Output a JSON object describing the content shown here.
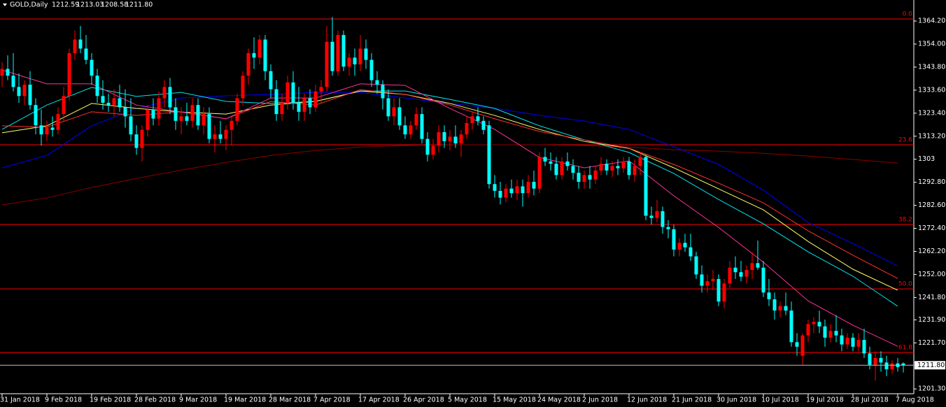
{
  "chart_data": {
    "type": "candlestick",
    "symbol": "GOLD,Daily",
    "header_values": [
      "1212.59",
      "1213.03",
      "1208.58",
      "1211.80"
    ],
    "current_price_label": "1211.80",
    "up_color": "#ff0000",
    "down_color": "#00ffff",
    "ylim": [
      1199.5,
      1373.5
    ],
    "yticks": [
      {
        "value": 1364.2,
        "label": "1364.20"
      },
      {
        "value": 1354,
        "label": "1354.00"
      },
      {
        "value": 1343.8,
        "label": "1343.80"
      },
      {
        "value": 1333.6,
        "label": "1333.60"
      },
      {
        "value": 1323.4,
        "label": "1323.40"
      },
      {
        "value": 1313.2,
        "label": "1313.20"
      },
      1303,
      {
        "value": 1292.8,
        "label": "1292.80"
      },
      {
        "value": 1282.6,
        "label": "1282.60"
      },
      {
        "value": 1272.4,
        "label": "1272.40"
      },
      {
        "value": 1262.2,
        "label": "1262.20"
      },
      {
        "value": 1252,
        "label": "1252.00"
      },
      {
        "value": 1241.8,
        "label": "1241.80"
      },
      {
        "value": 1231.9,
        "label": "1231.90"
      },
      {
        "value": 1221.7,
        "label": "1221.70"
      },
      {
        "value": 1201.3,
        "label": "1201.30"
      }
    ],
    "fib_levels": [
      {
        "label": "0.0",
        "price": 1365.1
      },
      {
        "label": "23.6",
        "price": 1309.4
      },
      {
        "label": "38.2",
        "price": 1274.1
      },
      {
        "label": "50.0",
        "price": 1245.6
      },
      {
        "label": "61.8",
        "price": 1217.4
      }
    ],
    "fib_color": "#ff0000",
    "categories": [
      "31 Jan 2018",
      null,
      null,
      null,
      null,
      null,
      null,
      null,
      "9 Feb 2018",
      null,
      null,
      null,
      null,
      null,
      null,
      null,
      "19 Feb 2018",
      null,
      null,
      null,
      null,
      null,
      null,
      null,
      "28 Feb 2018",
      null,
      null,
      null,
      null,
      null,
      null,
      null,
      "9 Mar 2018",
      null,
      null,
      null,
      null,
      null,
      null,
      null,
      "19 Mar 2018",
      null,
      null,
      null,
      null,
      null,
      null,
      null,
      "28 Mar 2018",
      null,
      null,
      null,
      null,
      null,
      null,
      null,
      "7 Apr 2018",
      null,
      null,
      null,
      null,
      null,
      null,
      null,
      "17 Apr 2018",
      null,
      null,
      null,
      null,
      null,
      null,
      null,
      "26 Apr 2018",
      null,
      null,
      null,
      null,
      null,
      null,
      null,
      "5 May 2018",
      null,
      null,
      null,
      null,
      null,
      null,
      null,
      "15 May 2018",
      null,
      null,
      null,
      null,
      null,
      null,
      null,
      "24 May 2018",
      null,
      null,
      null,
      null,
      null,
      null,
      null,
      "2 Jun 2018",
      null,
      null,
      null,
      null,
      null,
      null,
      null,
      "12 Jun 2018",
      null,
      null,
      null,
      null,
      null,
      null,
      null,
      "21 Jun 2018",
      null,
      null,
      null,
      null,
      null,
      null,
      null,
      "30 Jun 2018",
      null,
      null,
      null,
      null,
      null,
      null,
      null,
      "10 Jul 2018",
      null,
      null,
      null,
      null,
      null,
      null,
      null,
      "19 Jul 2018",
      null,
      null,
      null,
      null,
      null,
      null,
      null,
      "28 Jul 2018",
      null,
      null,
      null,
      null,
      null,
      null,
      null,
      "7 Aug 2018",
      null
    ],
    "ohlc": [
      [
        1340,
        1346,
        1335,
        1343
      ],
      [
        1343,
        1349,
        1338,
        1340
      ],
      [
        1340,
        1350,
        1333,
        1335
      ],
      [
        1335,
        1341,
        1328,
        1331
      ],
      [
        1331,
        1338,
        1327,
        1336
      ],
      [
        1336,
        1342,
        1325,
        1327
      ],
      [
        1327,
        1330,
        1314,
        1318
      ],
      [
        1318,
        1325,
        1309,
        1314
      ],
      [
        1314,
        1320,
        1311,
        1317
      ],
      [
        1317,
        1322,
        1313,
        1316
      ],
      [
        1316,
        1326,
        1314,
        1323
      ],
      [
        1323,
        1335,
        1320,
        1331
      ],
      [
        1331,
        1352,
        1329,
        1350
      ],
      [
        1350,
        1360,
        1347,
        1356
      ],
      [
        1356,
        1362,
        1350,
        1352
      ],
      [
        1352,
        1358,
        1345,
        1347
      ],
      [
        1347,
        1350,
        1336,
        1340
      ],
      [
        1340,
        1343,
        1328,
        1331
      ],
      [
        1331,
        1338,
        1325,
        1328
      ],
      [
        1328,
        1332,
        1324,
        1327
      ],
      [
        1327,
        1334,
        1322,
        1330
      ],
      [
        1330,
        1336,
        1324,
        1326
      ],
      [
        1326,
        1334,
        1317,
        1322
      ],
      [
        1322,
        1330,
        1311,
        1314
      ],
      [
        1314,
        1318,
        1305,
        1308
      ],
      [
        1308,
        1318,
        1302,
        1316
      ],
      [
        1316,
        1327,
        1313,
        1325
      ],
      [
        1325,
        1330,
        1318,
        1321
      ],
      [
        1321,
        1333,
        1318,
        1330
      ],
      [
        1330,
        1338,
        1326,
        1335
      ],
      [
        1335,
        1339,
        1323,
        1326
      ],
      [
        1326,
        1330,
        1316,
        1320
      ],
      [
        1320,
        1326,
        1314,
        1322
      ],
      [
        1322,
        1328,
        1318,
        1320
      ],
      [
        1320,
        1330,
        1317,
        1327
      ],
      [
        1327,
        1330,
        1316,
        1318
      ],
      [
        1318,
        1326,
        1314,
        1323
      ],
      [
        1323,
        1326,
        1310,
        1312
      ],
      [
        1312,
        1318,
        1306,
        1314
      ],
      [
        1314,
        1320,
        1310,
        1312
      ],
      [
        1312,
        1318,
        1307,
        1316
      ],
      [
        1316,
        1322,
        1309,
        1320
      ],
      [
        1320,
        1332,
        1318,
        1330
      ],
      [
        1330,
        1342,
        1327,
        1340
      ],
      [
        1340,
        1352,
        1336,
        1350
      ],
      [
        1350,
        1357,
        1343,
        1348
      ],
      [
        1348,
        1358,
        1345,
        1356
      ],
      [
        1356,
        1358,
        1338,
        1342
      ],
      [
        1342,
        1345,
        1330,
        1334
      ],
      [
        1334,
        1338,
        1320,
        1323
      ],
      [
        1323,
        1332,
        1320,
        1328
      ],
      [
        1328,
        1340,
        1325,
        1337
      ],
      [
        1337,
        1342,
        1325,
        1328
      ],
      [
        1328,
        1335,
        1320,
        1324
      ],
      [
        1324,
        1332,
        1320,
        1330
      ],
      [
        1330,
        1334,
        1323,
        1326
      ],
      [
        1326,
        1336,
        1324,
        1333
      ],
      [
        1333,
        1338,
        1328,
        1335
      ],
      [
        1335,
        1362,
        1333,
        1355
      ],
      [
        1355,
        1366,
        1340,
        1342
      ],
      [
        1342,
        1360,
        1340,
        1358
      ],
      [
        1358,
        1360,
        1342,
        1344
      ],
      [
        1344,
        1350,
        1340,
        1348
      ],
      [
        1348,
        1352,
        1340,
        1345
      ],
      [
        1345,
        1358,
        1342,
        1352
      ],
      [
        1352,
        1356,
        1343,
        1347
      ],
      [
        1347,
        1350,
        1335,
        1338
      ],
      [
        1338,
        1342,
        1332,
        1336
      ],
      [
        1336,
        1338,
        1325,
        1330
      ],
      [
        1330,
        1334,
        1320,
        1322
      ],
      [
        1322,
        1330,
        1318,
        1326
      ],
      [
        1326,
        1330,
        1316,
        1318
      ],
      [
        1318,
        1322,
        1312,
        1314
      ],
      [
        1314,
        1320,
        1312,
        1318
      ],
      [
        1318,
        1326,
        1316,
        1323
      ],
      [
        1323,
        1326,
        1310,
        1312
      ],
      [
        1312,
        1315,
        1302,
        1305
      ],
      [
        1305,
        1312,
        1303,
        1309
      ],
      [
        1309,
        1318,
        1306,
        1315
      ],
      [
        1315,
        1318,
        1308,
        1311
      ],
      [
        1311,
        1316,
        1307,
        1313
      ],
      [
        1313,
        1318,
        1308,
        1310
      ],
      [
        1310,
        1316,
        1304,
        1314
      ],
      [
        1314,
        1322,
        1312,
        1319
      ],
      [
        1319,
        1324,
        1316,
        1322
      ],
      [
        1322,
        1326,
        1318,
        1320
      ],
      [
        1320,
        1322,
        1314,
        1316
      ],
      [
        1318,
        1320,
        1290,
        1292
      ],
      [
        1292,
        1296,
        1286,
        1289
      ],
      [
        1289,
        1293,
        1283,
        1286
      ],
      [
        1286,
        1292,
        1284,
        1290
      ],
      [
        1290,
        1294,
        1286,
        1288
      ],
      [
        1288,
        1294,
        1285,
        1291
      ],
      [
        1291,
        1294,
        1282,
        1288
      ],
      [
        1288,
        1296,
        1286,
        1293
      ],
      [
        1293,
        1298,
        1287,
        1290
      ],
      [
        1290,
        1306,
        1288,
        1304
      ],
      [
        1304,
        1308,
        1300,
        1302
      ],
      [
        1302,
        1306,
        1298,
        1301
      ],
      [
        1301,
        1304,
        1294,
        1296
      ],
      [
        1296,
        1304,
        1294,
        1302
      ],
      [
        1302,
        1306,
        1298,
        1300
      ],
      [
        1300,
        1303,
        1294,
        1297
      ],
      [
        1297,
        1300,
        1290,
        1293
      ],
      [
        1293,
        1298,
        1290,
        1296
      ],
      [
        1296,
        1300,
        1290,
        1294
      ],
      [
        1294,
        1300,
        1292,
        1298
      ],
      [
        1298,
        1304,
        1296,
        1301
      ],
      [
        1301,
        1303,
        1296,
        1298
      ],
      [
        1298,
        1302,
        1295,
        1300
      ],
      [
        1300,
        1303,
        1296,
        1299
      ],
      [
        1299,
        1304,
        1297,
        1302
      ],
      [
        1302,
        1304,
        1294,
        1296
      ],
      [
        1296,
        1303,
        1293,
        1300
      ],
      [
        1300,
        1306,
        1296,
        1304
      ],
      [
        1304,
        1305,
        1276,
        1278
      ],
      [
        1278,
        1282,
        1274,
        1277
      ],
      [
        1277,
        1285,
        1275,
        1280
      ],
      [
        1280,
        1282,
        1270,
        1273
      ],
      [
        1273,
        1276,
        1268,
        1272
      ],
      [
        1272,
        1274,
        1260,
        1263
      ],
      [
        1263,
        1268,
        1260,
        1266
      ],
      [
        1266,
        1270,
        1262,
        1264
      ],
      [
        1264,
        1270,
        1258,
        1260
      ],
      [
        1260,
        1262,
        1250,
        1252
      ],
      [
        1252,
        1256,
        1244,
        1247
      ],
      [
        1247,
        1252,
        1244,
        1249
      ],
      [
        1249,
        1254,
        1245,
        1250
      ],
      [
        1250,
        1252,
        1238,
        1240
      ],
      [
        1240,
        1250,
        1237,
        1248
      ],
      [
        1248,
        1258,
        1246,
        1255
      ],
      [
        1255,
        1260,
        1250,
        1253
      ],
      [
        1253,
        1258,
        1249,
        1251
      ],
      [
        1251,
        1256,
        1248,
        1254
      ],
      [
        1254,
        1262,
        1250,
        1257
      ],
      [
        1257,
        1267,
        1254,
        1255
      ],
      [
        1255,
        1258,
        1242,
        1244
      ],
      [
        1244,
        1250,
        1238,
        1241
      ],
      [
        1241,
        1244,
        1232,
        1236
      ],
      [
        1236,
        1240,
        1233,
        1238
      ],
      [
        1238,
        1244,
        1234,
        1236
      ],
      [
        1236,
        1240,
        1220,
        1222
      ],
      [
        1222,
        1226,
        1216,
        1220
      ],
      [
        1216,
        1226,
        1212,
        1225
      ],
      [
        1225,
        1232,
        1222,
        1230
      ],
      [
        1230,
        1233,
        1226,
        1231
      ],
      [
        1231,
        1236,
        1226,
        1229
      ],
      [
        1229,
        1232,
        1220,
        1224
      ],
      [
        1224,
        1230,
        1222,
        1227
      ],
      [
        1227,
        1234,
        1222,
        1225
      ],
      [
        1225,
        1228,
        1218,
        1221
      ],
      [
        1221,
        1226,
        1219,
        1224
      ],
      [
        1224,
        1226,
        1218,
        1220
      ],
      [
        1220,
        1226,
        1218,
        1223
      ],
      [
        1223,
        1228,
        1215,
        1217
      ],
      [
        1217,
        1220,
        1210,
        1212
      ],
      [
        1212,
        1218,
        1205,
        1215
      ],
      [
        1215,
        1218,
        1209,
        1213
      ],
      [
        1213,
        1216,
        1207,
        1210
      ],
      [
        1210,
        1214,
        1208,
        1212.6
      ],
      [
        1212.6,
        1215,
        1209,
        1211
      ],
      [
        1212.59,
        1213.03,
        1208.58,
        1211.8
      ]
    ],
    "moving_averages": [
      {
        "color": "#8b0000",
        "values": [
          1282.8,
          1285.9,
          1290.5,
          1294.5,
          1298.2,
          1301.6,
          1304.7,
          1306.9,
          1308.4,
          1309.1,
          1309.4,
          1309.4,
          1309.4,
          1309.1,
          1308.4,
          1307.2,
          1306.6,
          1305.6,
          1304.4,
          1302.9,
          1301.3
        ]
      },
      {
        "color": "#0000ff",
        "values": [
          1299.2,
          1304.7,
          1317.8,
          1325.5,
          1330.1,
          1331.1,
          1331.7,
          1332.6,
          1332.6,
          1330.1,
          1327.7,
          1325.5,
          1322.4,
          1319.9,
          1316.2,
          1308.5,
          1300.7,
          1289.3,
          1275.0,
          1265.7,
          1255.8
        ]
      },
      {
        "color": "#00e5ee",
        "values": [
          1316.2,
          1327.0,
          1334.8,
          1330.8,
          1332.6,
          1328.6,
          1327.7,
          1328.6,
          1333.2,
          1333.2,
          1329.5,
          1325.5,
          1317.8,
          1311.6,
          1306.0,
          1296.7,
          1285.2,
          1274.4,
          1262.0,
          1251.2,
          1237.9
        ]
      },
      {
        "color": "#ffff66",
        "values": [
          1314.7,
          1317.8,
          1327.7,
          1325.5,
          1323.9,
          1323.0,
          1327.0,
          1328.6,
          1333.2,
          1331.7,
          1327.7,
          1322.4,
          1316.2,
          1310.9,
          1307.8,
          1299.2,
          1289.9,
          1280.6,
          1266.6,
          1254.3,
          1245.0
        ]
      },
      {
        "color": "#ff3030",
        "values": [
          1317.8,
          1317.2,
          1324.0,
          1322.4,
          1324.0,
          1320.9,
          1328.6,
          1327.0,
          1333.8,
          1331.7,
          1327.0,
          1320.9,
          1315.3,
          1311.6,
          1307.9,
          1300.7,
          1292.4,
          1283.7,
          1271.3,
          1260.5,
          1250.2
        ]
      },
      {
        "color": "#ff3399",
        "values": [
          1342.5,
          1336.4,
          1336.4,
          1327.0,
          1323.9,
          1320.9,
          1330.1,
          1330.1,
          1336.4,
          1335.7,
          1325.5,
          1316.2,
          1303.8,
          1299.2,
          1302.3,
          1286.8,
          1272.8,
          1257.4,
          1240.3,
          1229.5,
          1220.2
        ]
      }
    ]
  }
}
